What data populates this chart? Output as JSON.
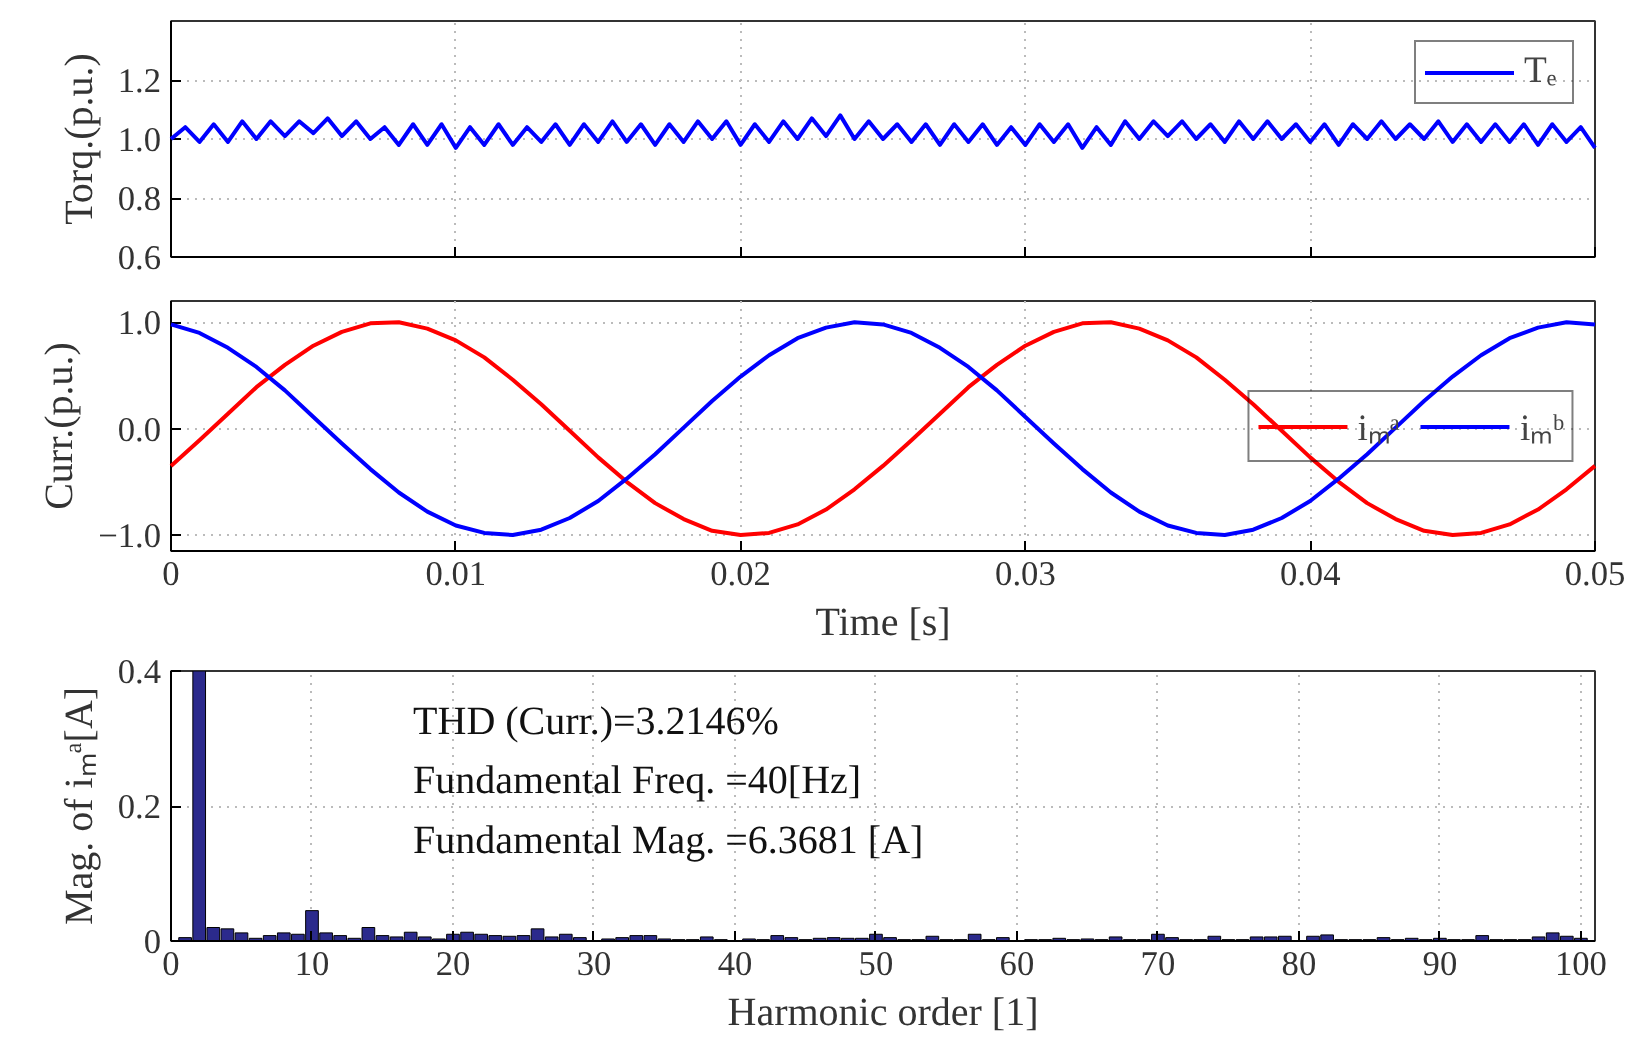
{
  "chart_data": [
    {
      "type": "line",
      "ylabel": "Torq.(p.u.)",
      "xlim": [
        0,
        0.05
      ],
      "xticks": [
        0,
        0.01,
        0.02,
        0.03,
        0.04,
        0.05
      ],
      "ylim": [
        0.6,
        1.4
      ],
      "yticks": [
        0.6,
        0.8,
        {
          "value": 1.0,
          "label": "1.0"
        },
        1.2
      ],
      "tick_labels": "y",
      "grid": true,
      "legend": "top right",
      "line_style": "solid",
      "x": [
        0,
        0.0005,
        0.001,
        0.0015,
        0.002,
        0.0025,
        0.003,
        0.0035,
        0.004,
        0.0045,
        0.005,
        0.0055,
        0.006,
        0.0065,
        0.007,
        0.0075,
        0.008,
        0.0085,
        0.009,
        0.0095,
        0.01,
        0.0105,
        0.011,
        0.0115,
        0.012,
        0.0125,
        0.013,
        0.0135,
        0.014,
        0.0145,
        0.015,
        0.0155,
        0.016,
        0.0165,
        0.017,
        0.0175,
        0.018,
        0.0185,
        0.019,
        0.0195,
        0.02,
        0.0205,
        0.021,
        0.0215,
        0.022,
        0.0225,
        0.023,
        0.0235,
        0.024,
        0.0245,
        0.025,
        0.0255,
        0.026,
        0.0265,
        0.027,
        0.0275,
        0.028,
        0.0285,
        0.029,
        0.0295,
        0.03,
        0.0305,
        0.031,
        0.0315,
        0.032,
        0.0325,
        0.033,
        0.0335,
        0.034,
        0.0345,
        0.035,
        0.0355,
        0.036,
        0.0365,
        0.037,
        0.0375,
        0.038,
        0.0385,
        0.039,
        0.0395,
        0.04,
        0.0405,
        0.041,
        0.0415,
        0.042,
        0.0425,
        0.043,
        0.0435,
        0.044,
        0.0445,
        0.045,
        0.0455,
        0.046,
        0.0465,
        0.047,
        0.0475,
        0.048,
        0.0485,
        0.049,
        0.0495,
        0.05
      ],
      "series": [
        {
          "name": "Tₑ",
          "color": "#0000ff",
          "values": [
            1.0,
            1.04,
            0.99,
            1.05,
            0.99,
            1.06,
            1.0,
            1.06,
            1.01,
            1.06,
            1.02,
            1.07,
            1.01,
            1.06,
            1.0,
            1.04,
            0.98,
            1.05,
            0.98,
            1.05,
            0.97,
            1.04,
            0.98,
            1.05,
            0.98,
            1.04,
            0.99,
            1.05,
            0.98,
            1.05,
            0.99,
            1.06,
            0.99,
            1.05,
            0.98,
            1.05,
            0.99,
            1.06,
            1.0,
            1.06,
            0.98,
            1.05,
            0.99,
            1.06,
            1.0,
            1.07,
            1.01,
            1.08,
            1.0,
            1.06,
            1.0,
            1.05,
            0.99,
            1.05,
            0.98,
            1.05,
            0.99,
            1.05,
            0.98,
            1.04,
            0.98,
            1.05,
            0.99,
            1.05,
            0.97,
            1.04,
            0.98,
            1.06,
            1.0,
            1.06,
            1.01,
            1.06,
            1.0,
            1.05,
            0.99,
            1.06,
            1.0,
            1.06,
            1.0,
            1.05,
            0.99,
            1.05,
            0.98,
            1.05,
            1.0,
            1.06,
            1.0,
            1.05,
            1.0,
            1.06,
            0.99,
            1.05,
            0.99,
            1.05,
            0.99,
            1.05,
            0.98,
            1.05,
            0.99,
            1.04,
            0.97
          ]
        }
      ]
    },
    {
      "type": "line",
      "xlabel": "Time [s]",
      "ylabel": "Curr.(p.u.)",
      "xlim": [
        0,
        0.05
      ],
      "xticks": [
        0,
        0.01,
        0.02,
        0.03,
        0.04,
        0.05
      ],
      "ylim": [
        -1.15,
        1.2
      ],
      "yticks": [
        {
          "value": -1,
          "label": "−1.0"
        },
        {
          "value": 0,
          "label": "0.0"
        },
        {
          "value": 1,
          "label": "1.0"
        }
      ],
      "grid": true,
      "legend": "right",
      "line_style": "solid",
      "x": [
        0,
        0.001,
        0.002,
        0.003,
        0.004,
        0.005,
        0.006,
        0.007,
        0.008,
        0.009,
        0.01,
        0.011,
        0.012,
        0.013,
        0.014,
        0.015,
        0.016,
        0.017,
        0.018,
        0.019,
        0.02,
        0.021,
        0.022,
        0.023,
        0.024,
        0.025,
        0.026,
        0.027,
        0.028,
        0.029,
        0.03,
        0.031,
        0.032,
        0.033,
        0.034,
        0.035,
        0.036,
        0.037,
        0.038,
        0.039,
        0.04,
        0.041,
        0.042,
        0.043,
        0.044,
        0.045,
        0.046,
        0.047,
        0.048,
        0.049,
        0.05
      ],
      "series": [
        {
          "name": "iₘᵃ",
          "color": "#ff0000",
          "values": [
            -0.35,
            -0.11,
            0.14,
            0.39,
            0.6,
            0.78,
            0.91,
            0.99,
            1.0,
            0.94,
            0.83,
            0.67,
            0.46,
            0.23,
            -0.02,
            -0.27,
            -0.5,
            -0.7,
            -0.85,
            -0.96,
            -1.0,
            -0.98,
            -0.9,
            -0.76,
            -0.57,
            -0.35,
            -0.11,
            0.14,
            0.39,
            0.6,
            0.78,
            0.91,
            0.99,
            1.0,
            0.94,
            0.83,
            0.67,
            0.46,
            0.23,
            -0.02,
            -0.27,
            -0.5,
            -0.7,
            -0.85,
            -0.96,
            -1.0,
            -0.98,
            -0.9,
            -0.76,
            -0.57,
            -0.35
          ]
        },
        {
          "name": "iₘᵇ",
          "color": "#0000ff",
          "values": [
            0.98,
            0.9,
            0.76,
            0.58,
            0.36,
            0.11,
            -0.14,
            -0.38,
            -0.6,
            -0.78,
            -0.91,
            -0.98,
            -1.0,
            -0.95,
            -0.84,
            -0.68,
            -0.47,
            -0.24,
            0.01,
            0.26,
            0.49,
            0.69,
            0.85,
            0.95,
            1.0,
            0.98,
            0.9,
            0.76,
            0.58,
            0.36,
            0.11,
            -0.14,
            -0.38,
            -0.6,
            -0.78,
            -0.91,
            -0.98,
            -1.0,
            -0.95,
            -0.84,
            -0.68,
            -0.47,
            -0.24,
            0.01,
            0.26,
            0.49,
            0.69,
            0.85,
            0.95,
            1.0,
            0.98
          ]
        }
      ]
    },
    {
      "type": "bar",
      "xlabel": "Harmonic order [1]",
      "ylabel": "Mag. of iₘᵃ[A]",
      "xlim": [
        0,
        101
      ],
      "xticks": [
        0,
        10,
        20,
        30,
        40,
        50,
        60,
        70,
        80,
        90,
        100
      ],
      "ylim": [
        0,
        0.4
      ],
      "yticks": [
        0,
        0.2,
        0.4
      ],
      "grid": true,
      "annotations": [
        "THD (Curr.)=3.2146%",
        "Fundamental Freq. =40[Hz]",
        "Fundamental Mag. =6.3681 [A]"
      ],
      "x": [
        1,
        2,
        3,
        4,
        5,
        6,
        7,
        8,
        9,
        10,
        11,
        12,
        13,
        14,
        15,
        16,
        17,
        18,
        19,
        20,
        21,
        22,
        23,
        24,
        25,
        26,
        27,
        28,
        29,
        30,
        31,
        32,
        33,
        34,
        35,
        36,
        37,
        38,
        39,
        40,
        41,
        42,
        43,
        44,
        45,
        46,
        47,
        48,
        49,
        50,
        51,
        52,
        53,
        54,
        55,
        56,
        57,
        58,
        59,
        60,
        61,
        62,
        63,
        64,
        65,
        66,
        67,
        68,
        69,
        70,
        71,
        72,
        73,
        74,
        75,
        76,
        77,
        78,
        79,
        80,
        81,
        82,
        83,
        84,
        85,
        86,
        87,
        88,
        89,
        90,
        91,
        92,
        93,
        94,
        95,
        96,
        97,
        98,
        99,
        100
      ],
      "series": [
        {
          "color": "#2b2a8c",
          "values": [
            0.005,
            0.4,
            0.02,
            0.018,
            0.012,
            0.004,
            0.008,
            0.012,
            0.01,
            0.045,
            0.012,
            0.008,
            0.004,
            0.02,
            0.008,
            0.006,
            0.013,
            0.006,
            0.003,
            0.01,
            0.013,
            0.01,
            0.008,
            0.007,
            0.008,
            0.018,
            0.006,
            0.01,
            0.005,
            null,
            0.003,
            0.005,
            0.008,
            0.008,
            0.003,
            0.002,
            0.002,
            0.006,
            0.002,
            null,
            0.003,
            0.002,
            0.008,
            0.005,
            0.002,
            0.004,
            0.005,
            0.004,
            0.004,
            0.01,
            0.005,
            0.002,
            0.002,
            0.007,
            0.002,
            0.002,
            0.01,
            0.002,
            0.005,
            null,
            0.002,
            0.002,
            0.004,
            0.002,
            0.003,
            0.002,
            0.006,
            0.002,
            0.002,
            0.01,
            0.005,
            0.002,
            0.002,
            0.007,
            0.002,
            0.002,
            0.006,
            0.006,
            0.007,
            null,
            0.007,
            0.009,
            0.002,
            0.002,
            0.002,
            0.005,
            0.002,
            0.004,
            0.002,
            0.004,
            0.002,
            0.002,
            0.008,
            0.002,
            0.002,
            0.002,
            0.006,
            0.012,
            0.007,
            0.004
          ]
        }
      ]
    }
  ]
}
